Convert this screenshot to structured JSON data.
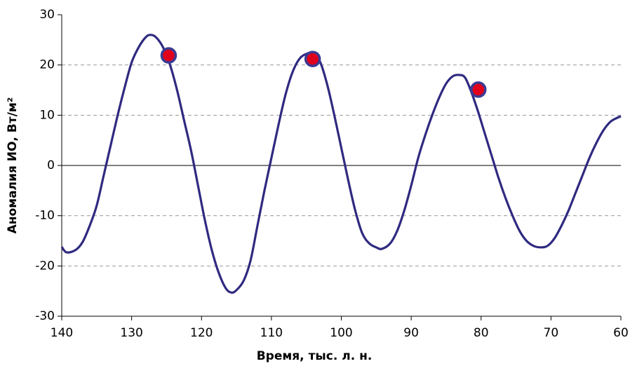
{
  "chart_data": {
    "type": "line",
    "xlabel": "Время, тыс. л. н.",
    "ylabel": "Аномалия ИО, Вт/м²",
    "xlim": [
      140,
      60
    ],
    "ylim": [
      -30,
      30
    ],
    "xticks": [
      140,
      130,
      120,
      110,
      100,
      90,
      80,
      70,
      60
    ],
    "yticks": [
      -30,
      -20,
      -10,
      0,
      10,
      20,
      30
    ],
    "grid": true,
    "series": [
      {
        "color": "#2f2a80",
        "x": [
          140,
          139.3,
          138,
          137,
          136,
          135,
          134,
          133,
          132,
          131,
          130,
          129,
          128,
          127.3,
          126.5,
          125.5,
          124.5,
          123.5,
          122.5,
          121.5,
          120.5,
          119.5,
          118.5,
          117.5,
          116.5,
          115.7,
          115,
          114,
          113,
          112,
          111,
          110,
          109,
          108,
          107,
          106,
          105,
          104,
          103,
          102,
          101,
          100,
          99,
          98,
          97,
          96,
          95,
          94.2,
          93,
          92,
          91,
          90,
          89,
          88,
          87,
          86,
          85,
          84,
          83,
          82.3,
          81.5,
          80.5,
          79.5,
          78.5,
          77.5,
          76.5,
          75.5,
          74.5,
          73.5,
          72.5,
          71.5,
          70.5,
          69.5,
          68.5,
          67.5,
          66.5,
          65.5,
          64.5,
          63.5,
          62.5,
          61.5,
          60.5,
          60
        ],
        "values": [
          -16.2,
          -17.3,
          -16.8,
          -15.2,
          -12,
          -8,
          -2,
          4,
          10,
          15.5,
          20.5,
          23.5,
          25.5,
          26,
          25.5,
          23.5,
          20,
          15,
          9,
          3,
          -4,
          -11,
          -17,
          -21.5,
          -24.5,
          -25.3,
          -24.8,
          -23,
          -19,
          -12,
          -5,
          1.5,
          8,
          14,
          18.5,
          21.2,
          22.2,
          22.3,
          20.5,
          16,
          10,
          3.5,
          -3,
          -9,
          -13.5,
          -15.5,
          -16.3,
          -16.6,
          -15.5,
          -13,
          -9,
          -4,
          1.5,
          6,
          10,
          13.5,
          16.3,
          17.8,
          18,
          17.5,
          15,
          11,
          6.5,
          2,
          -2.5,
          -6.5,
          -10,
          -13,
          -15,
          -16,
          -16.3,
          -16,
          -14.5,
          -12,
          -9,
          -5.5,
          -2,
          1.5,
          4.5,
          7,
          8.7,
          9.5,
          9.8
        ]
      },
      {
        "color": "#e0001b",
        "x": [
          124.7,
          104.1,
          80.4
        ],
        "values": [
          21.9,
          21.2,
          15.1
        ]
      }
    ]
  }
}
